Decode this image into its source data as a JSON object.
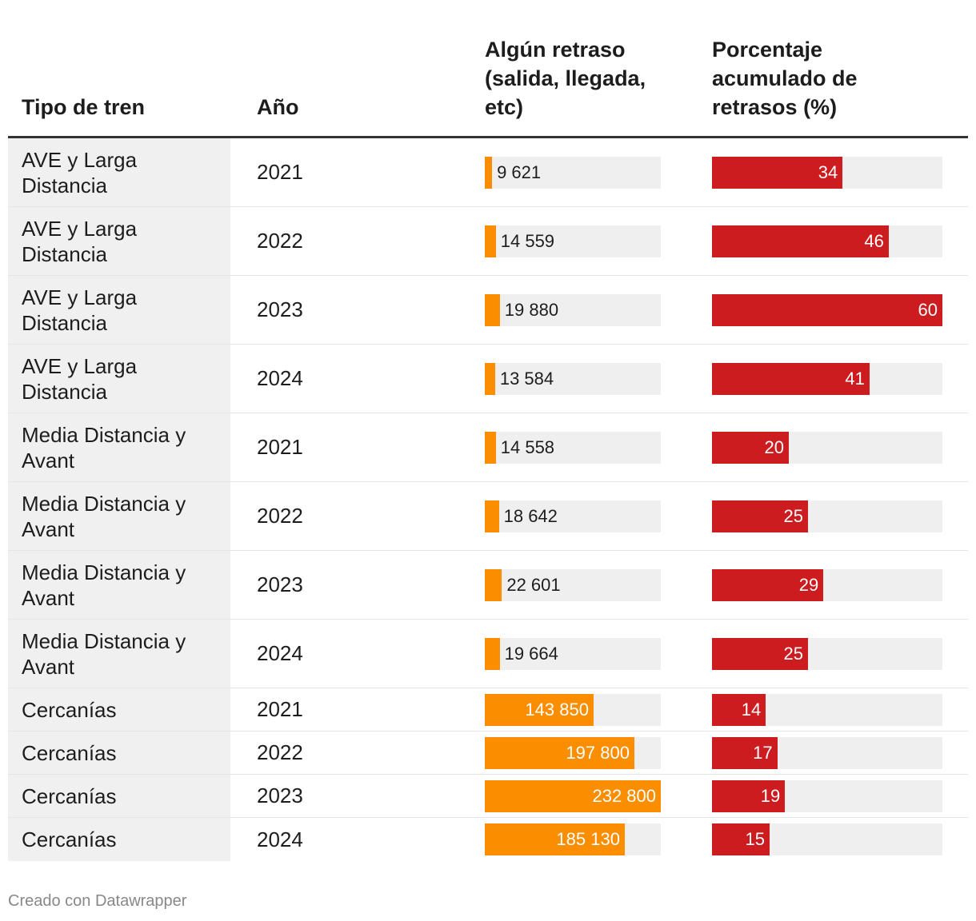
{
  "table": {
    "headers": {
      "type": "Tipo de tren",
      "year": "Año",
      "delay": "Algún retraso (salida, llegada, etc)",
      "pct": "Porcentaje acumulado de retrasos (%)"
    },
    "rows": [
      {
        "type": "AVE y Larga Distancia",
        "year": "2021",
        "delay_label": "9 621",
        "pct_label": "34"
      },
      {
        "type": "AVE y Larga Distancia",
        "year": "2022",
        "delay_label": "14 559",
        "pct_label": "46"
      },
      {
        "type": "AVE y Larga Distancia",
        "year": "2023",
        "delay_label": "19 880",
        "pct_label": "60"
      },
      {
        "type": "AVE y Larga Distancia",
        "year": "2024",
        "delay_label": "13 584",
        "pct_label": "41"
      },
      {
        "type": "Media Distancia y Avant",
        "year": "2021",
        "delay_label": "14 558",
        "pct_label": "20"
      },
      {
        "type": "Media Distancia y Avant",
        "year": "2022",
        "delay_label": "18 642",
        "pct_label": "25"
      },
      {
        "type": "Media Distancia y Avant",
        "year": "2023",
        "delay_label": "22 601",
        "pct_label": "29"
      },
      {
        "type": "Media Distancia y Avant",
        "year": "2024",
        "delay_label": "19 664",
        "pct_label": "25"
      },
      {
        "type": "Cercanías",
        "year": "2021",
        "delay_label": "143 850",
        "pct_label": "14"
      },
      {
        "type": "Cercanías",
        "year": "2022",
        "delay_label": "197 800",
        "pct_label": "17"
      },
      {
        "type": "Cercanías",
        "year": "2023",
        "delay_label": "232 800",
        "pct_label": "19"
      },
      {
        "type": "Cercanías",
        "year": "2024",
        "delay_label": "185 130",
        "pct_label": "15"
      }
    ]
  },
  "footer": {
    "credit": "Creado con Datawrapper"
  },
  "colors": {
    "delay_bar": "#fb8d00",
    "pct_bar": "#cd1c1f",
    "track": "#efefef",
    "type_column_bg": "#f0f0f0"
  },
  "chart_data": {
    "type": "table",
    "title": "",
    "columns": [
      "Tipo de tren",
      "Año",
      "Algún retraso (salida, llegada, etc)",
      "Porcentaje acumulado de retrasos (%)"
    ],
    "categories": [
      "AVE y Larga Distancia 2021",
      "AVE y Larga Distancia 2022",
      "AVE y Larga Distancia 2023",
      "AVE y Larga Distancia 2024",
      "Media Distancia y Avant 2021",
      "Media Distancia y Avant 2022",
      "Media Distancia y Avant 2023",
      "Media Distancia y Avant 2024",
      "Cercanías 2021",
      "Cercanías 2022",
      "Cercanías 2023",
      "Cercanías 2024"
    ],
    "series": [
      {
        "name": "Algún retraso (salida, llegada, etc)",
        "values": [
          9621,
          14559,
          19880,
          13584,
          14558,
          18642,
          22601,
          19664,
          143850,
          197800,
          232800,
          185130
        ],
        "range": [
          0,
          232800
        ]
      },
      {
        "name": "Porcentaje acumulado de retrasos (%)",
        "values": [
          34,
          46,
          60,
          41,
          20,
          25,
          29,
          25,
          14,
          17,
          19,
          15
        ],
        "range": [
          0,
          60
        ]
      }
    ]
  }
}
